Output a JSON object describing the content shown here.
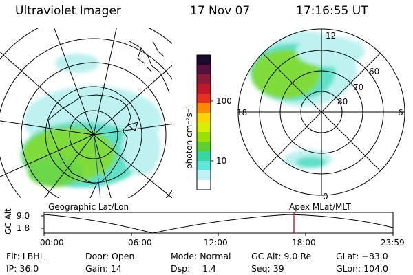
{
  "header": {
    "instrument": "Ultraviolet Imager",
    "date": "17 Nov 07",
    "time": "17:16:55 UT"
  },
  "colorbar": {
    "unit_label": "photon cm⁻²s⁻¹",
    "tick_labels": [
      "100",
      "10"
    ],
    "colors": [
      "#1a0a2e",
      "#55103f",
      "#8a1a3a",
      "#c01a2a",
      "#e8321e",
      "#ff8a00",
      "#ffd400",
      "#d8f000",
      "#9be100",
      "#5cd030",
      "#38d7a0",
      "#5fe6d8",
      "#bff3f5",
      "#ffffff"
    ]
  },
  "left_map": {
    "caption": "Geographic Lat/Lon",
    "aurora_colors": [
      "#7fdc3a",
      "#5fe0c8",
      "#bdf2f0"
    ]
  },
  "right_map": {
    "caption": "Apex MLat/MLT",
    "mlt_labels": {
      "top": "12",
      "left": "18",
      "right": "6",
      "bottom": "0"
    },
    "lat_labels": [
      "60",
      "70",
      "80"
    ]
  },
  "altitude_plot": {
    "ylabel": "GC Alt",
    "y_ticks": [
      "9.0",
      "1.8"
    ],
    "x_ticks": [
      "00:00",
      "06:00",
      "12:00",
      "18:00",
      "23:59"
    ],
    "marker_color": "#c0303a"
  },
  "status": {
    "row1": {
      "filter": "Flt: LBHL",
      "door": "Door: Open",
      "mode": "Mode: Normal",
      "gc_alt": "GC Alt: 9.0 Re",
      "glat": "GLat: −83.0"
    },
    "row2": {
      "ip": "IP: 36.0",
      "gain": "Gain: 14",
      "dsp_label": "Dsp:",
      "dsp_value": "1.4",
      "seq": "Seq: 39",
      "glon": "GLon: 104.0"
    }
  }
}
